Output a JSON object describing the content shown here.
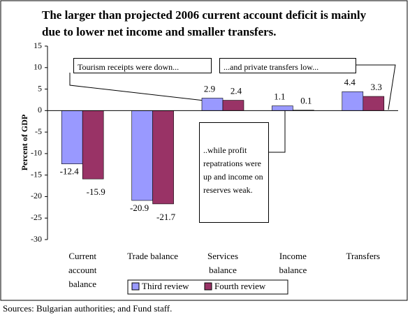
{
  "chart_data": {
    "type": "bar",
    "title": "The larger than projected 2006 current account deficit is mainly due to lower net income and smaller transfers.",
    "y_label": "Percent of GDP",
    "categories": [
      "Current account balance",
      "Trade balance",
      "Services balance",
      "Income balance",
      "Transfers"
    ],
    "series": [
      {
        "name": "Third review",
        "color": "#9999ff",
        "values": [
          -12.4,
          -20.9,
          2.9,
          1.1,
          4.4
        ]
      },
      {
        "name": "Fourth review",
        "color": "#993366",
        "values": [
          -15.9,
          -21.7,
          2.4,
          0.1,
          3.3
        ]
      }
    ],
    "ylim": [
      -30,
      15
    ],
    "yticks": [
      -30,
      -25,
      -20,
      -15,
      -10,
      -5,
      0,
      5,
      10,
      15
    ],
    "grid": false,
    "legend": "bottom",
    "annotations": [
      "Tourism receipts were down...",
      "...and private transfers low...",
      "..while profit repatrations were up and income on reserves weak."
    ],
    "source": "Sources: Bulgarian authorities; and Fund staff."
  }
}
